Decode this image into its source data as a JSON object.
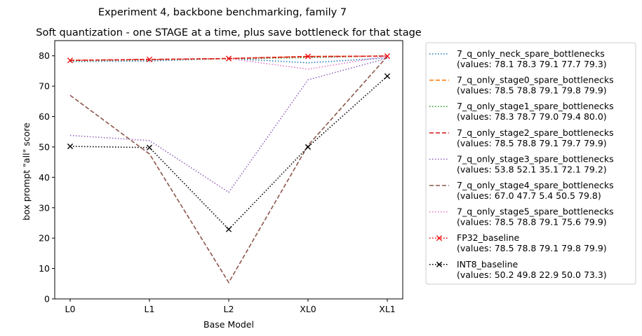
{
  "chart_data": {
    "type": "line",
    "suptitle": "Experiment 4, backbone benchmarking, family 7",
    "title": "Soft quantization - one STAGE at a time, plus save bottleneck for that stage",
    "xlabel": "Base Model",
    "ylabel": "box prompt \"all\" score",
    "categories": [
      "L0",
      "L1",
      "L2",
      "XL0",
      "XL1"
    ],
    "ylim": [
      0,
      85
    ],
    "yticks": [
      0,
      10,
      20,
      30,
      40,
      50,
      60,
      70,
      80
    ],
    "grid": false,
    "legend_position": "outside-right",
    "series": [
      {
        "name": "7_q_only_neck_spare_bottlenecks",
        "values_label": "(values: 78.1 78.3 79.1 77.7 79.3)",
        "values": [
          78.1,
          78.3,
          79.1,
          77.7,
          79.3
        ],
        "color": "#1f77b4",
        "dash": "dotted",
        "marker": "none"
      },
      {
        "name": "7_q_only_stage0_spare_bottlenecks",
        "values_label": "(values: 78.5 78.8 79.1 79.8 79.9)",
        "values": [
          78.5,
          78.8,
          79.1,
          79.8,
          79.9
        ],
        "color": "#ff7f0e",
        "dash": "dashed",
        "marker": "none"
      },
      {
        "name": "7_q_only_stage1_spare_bottlenecks",
        "values_label": "(values: 78.3 78.7 79.0 79.4 80.0)",
        "values": [
          78.3,
          78.7,
          79.0,
          79.4,
          80.0
        ],
        "color": "#2ca02c",
        "dash": "dotted",
        "marker": "none"
      },
      {
        "name": "7_q_only_stage2_spare_bottlenecks",
        "values_label": "(values: 78.5 78.8 79.1 79.7 79.9)",
        "values": [
          78.5,
          78.8,
          79.1,
          79.7,
          79.9
        ],
        "color": "#d62728",
        "dash": "dashed",
        "marker": "none"
      },
      {
        "name": "7_q_only_stage3_spare_bottlenecks",
        "values_label": "(values: 53.8 52.1 35.1 72.1 79.2)",
        "values": [
          53.8,
          52.1,
          35.1,
          72.1,
          79.2
        ],
        "color": "#9467bd",
        "dash": "dotted",
        "marker": "none"
      },
      {
        "name": "7_q_only_stage4_spare_bottlenecks",
        "values_label": "(values: 67.0 47.7 5.4 50.5 79.8)",
        "values": [
          67.0,
          47.7,
          5.4,
          50.5,
          79.8
        ],
        "color": "#8c564b",
        "dash": "dashed",
        "marker": "none"
      },
      {
        "name": "7_q_only_stage5_spare_bottlenecks",
        "values_label": "(values: 78.5 78.8 79.1 75.6 79.9)",
        "values": [
          78.5,
          78.8,
          79.1,
          75.6,
          79.9
        ],
        "color": "#e377c2",
        "dash": "dotted",
        "marker": "none"
      },
      {
        "name": "FP32_baseline",
        "values_label": "(values: 78.5 78.8 79.1 79.8 79.9)",
        "values": [
          78.5,
          78.8,
          79.1,
          79.8,
          79.9
        ],
        "color": "#ee1111",
        "dash": "dotted",
        "marker": "x"
      },
      {
        "name": "INT8_baseline",
        "values_label": "(values: 50.2 49.8 22.9 50.0 73.3)",
        "values": [
          50.2,
          49.8,
          22.9,
          50.0,
          73.3
        ],
        "color": "#000000",
        "dash": "dotted",
        "marker": "x"
      }
    ]
  }
}
